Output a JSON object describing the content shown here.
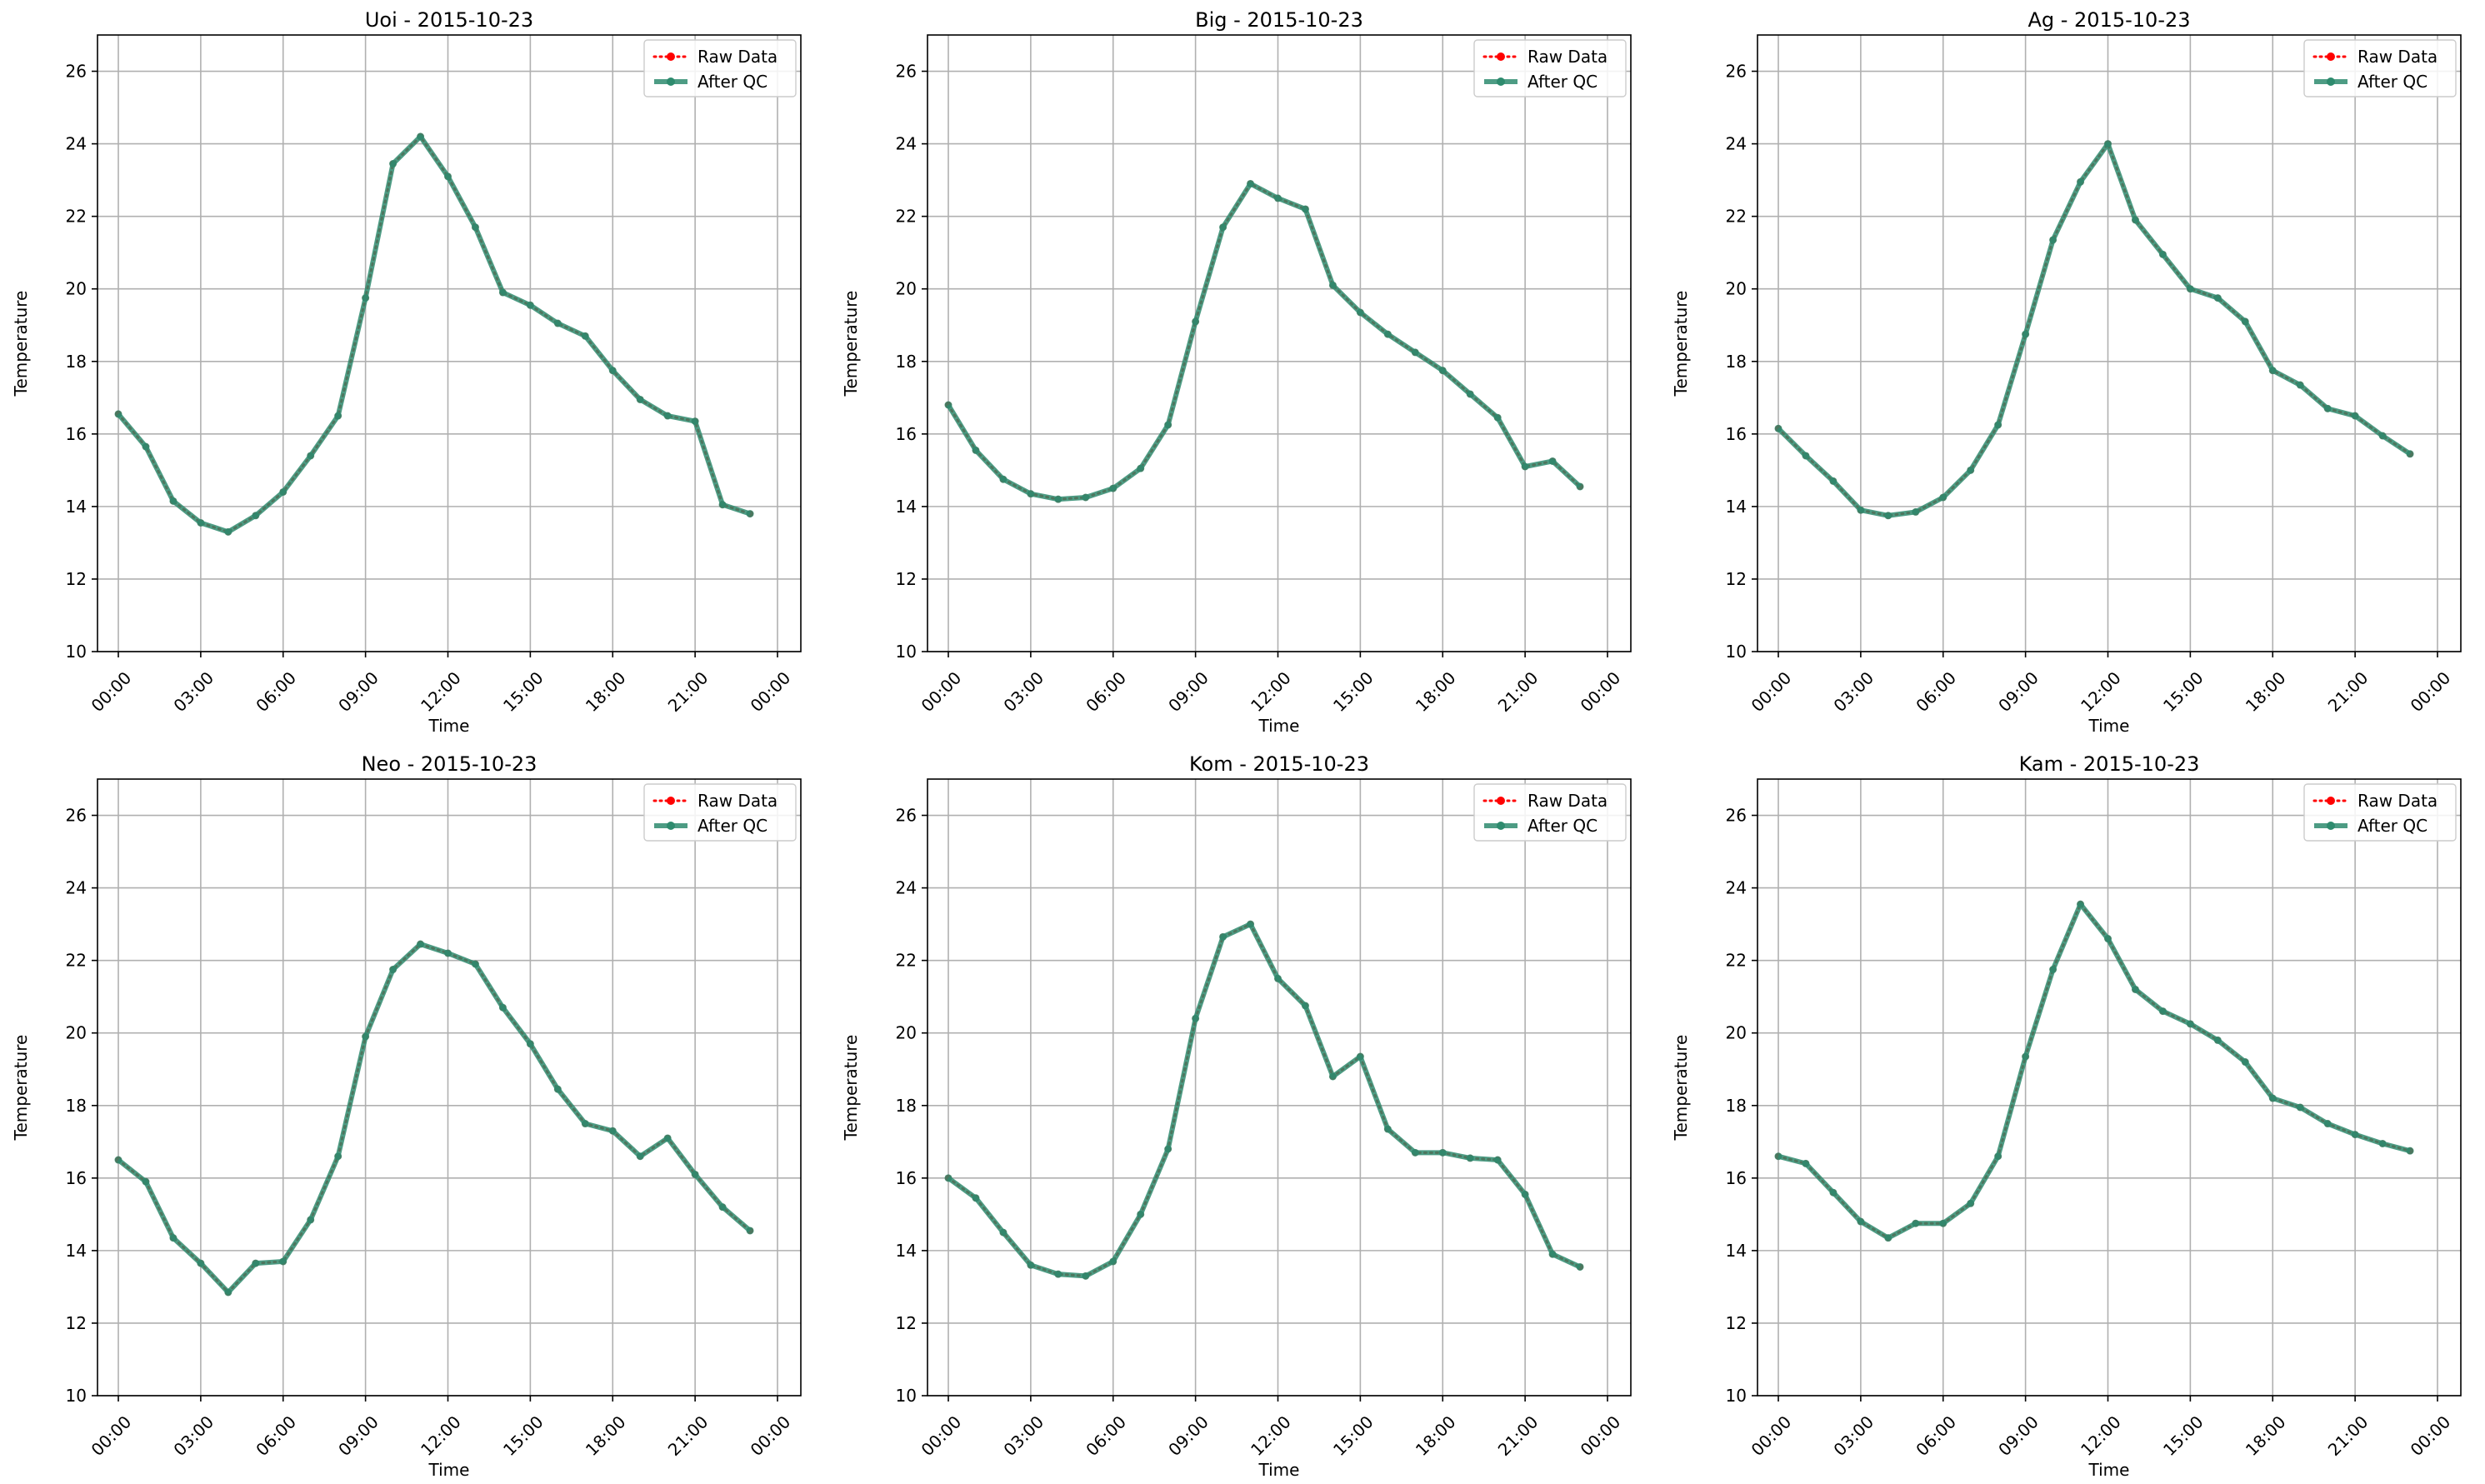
{
  "legend": {
    "raw_label": "Raw Data",
    "qc_label": "After QC",
    "raw_color": "#ff0000",
    "qc_color": "#2e8b6e"
  },
  "chart_data": [
    {
      "type": "line",
      "title": "Uoi - 2015-10-23",
      "xlabel": "Time",
      "ylabel": "Temperature",
      "ylim": [
        10,
        27
      ],
      "yticks": [
        10,
        12,
        14,
        16,
        18,
        20,
        22,
        24,
        26
      ],
      "xticks": [
        "00:00",
        "03:00",
        "06:00",
        "09:00",
        "12:00",
        "15:00",
        "18:00",
        "21:00",
        "00:00"
      ],
      "grid": true,
      "legend_position": "top-right",
      "x": [
        0,
        1,
        2,
        3,
        4,
        5,
        6,
        7,
        8,
        9,
        10,
        11,
        12,
        13,
        14,
        15,
        16,
        17,
        18,
        19,
        20,
        21,
        22,
        23
      ],
      "series": [
        {
          "name": "Raw Data",
          "values": [
            16.55,
            15.65,
            14.15,
            13.55,
            13.3,
            13.75,
            14.4,
            15.4,
            16.5,
            19.75,
            23.45,
            24.2,
            23.1,
            21.7,
            19.9,
            19.55,
            19.05,
            18.7,
            17.75,
            16.95,
            16.5,
            16.35,
            14.05,
            13.8
          ]
        },
        {
          "name": "After QC",
          "values": [
            16.55,
            15.65,
            14.15,
            13.55,
            13.3,
            13.75,
            14.4,
            15.4,
            16.5,
            19.75,
            23.45,
            24.2,
            23.1,
            21.7,
            19.9,
            19.55,
            19.05,
            18.7,
            17.75,
            16.95,
            16.5,
            16.35,
            14.05,
            13.8
          ]
        }
      ]
    },
    {
      "type": "line",
      "title": "Big - 2015-10-23",
      "xlabel": "Time",
      "ylabel": "Temperature",
      "ylim": [
        10,
        27
      ],
      "yticks": [
        10,
        12,
        14,
        16,
        18,
        20,
        22,
        24,
        26
      ],
      "xticks": [
        "00:00",
        "03:00",
        "06:00",
        "09:00",
        "12:00",
        "15:00",
        "18:00",
        "21:00",
        "00:00"
      ],
      "grid": true,
      "legend_position": "top-right",
      "x": [
        0,
        1,
        2,
        3,
        4,
        5,
        6,
        7,
        8,
        9,
        10,
        11,
        12,
        13,
        14,
        15,
        16,
        17,
        18,
        19,
        20,
        21,
        22,
        23
      ],
      "series": [
        {
          "name": "Raw Data",
          "values": [
            16.8,
            15.55,
            14.75,
            14.35,
            14.2,
            14.25,
            14.5,
            15.05,
            16.25,
            19.1,
            21.7,
            22.9,
            22.5,
            22.2,
            20.1,
            19.35,
            18.75,
            18.25,
            17.75,
            17.1,
            16.45,
            15.1,
            15.25,
            14.55
          ]
        },
        {
          "name": "After QC",
          "values": [
            16.8,
            15.55,
            14.75,
            14.35,
            14.2,
            14.25,
            14.5,
            15.05,
            16.25,
            19.1,
            21.7,
            22.9,
            22.5,
            22.2,
            20.1,
            19.35,
            18.75,
            18.25,
            17.75,
            17.1,
            16.45,
            15.1,
            15.25,
            14.55
          ]
        }
      ]
    },
    {
      "type": "line",
      "title": "Ag - 2015-10-23",
      "xlabel": "Time",
      "ylabel": "Temperature",
      "ylim": [
        10,
        27
      ],
      "yticks": [
        10,
        12,
        14,
        16,
        18,
        20,
        22,
        24,
        26
      ],
      "xticks": [
        "00:00",
        "03:00",
        "06:00",
        "09:00",
        "12:00",
        "15:00",
        "18:00",
        "21:00",
        "00:00"
      ],
      "grid": true,
      "legend_position": "top-right",
      "x": [
        0,
        1,
        2,
        3,
        4,
        5,
        6,
        7,
        8,
        9,
        10,
        11,
        12,
        13,
        14,
        15,
        16,
        17,
        18,
        19,
        20,
        21,
        22,
        23
      ],
      "series": [
        {
          "name": "Raw Data",
          "values": [
            16.15,
            15.4,
            14.7,
            13.9,
            13.75,
            13.85,
            14.25,
            15.0,
            16.25,
            18.75,
            21.35,
            22.95,
            24.0,
            21.9,
            20.95,
            20.0,
            19.75,
            19.1,
            17.75,
            17.35,
            16.7,
            16.5,
            15.95,
            15.45
          ]
        },
        {
          "name": "After QC",
          "values": [
            16.15,
            15.4,
            14.7,
            13.9,
            13.75,
            13.85,
            14.25,
            15.0,
            16.25,
            18.75,
            21.35,
            22.95,
            24.0,
            21.9,
            20.95,
            20.0,
            19.75,
            19.1,
            17.75,
            17.35,
            16.7,
            16.5,
            15.95,
            15.45
          ]
        }
      ]
    },
    {
      "type": "line",
      "title": "Neo - 2015-10-23",
      "xlabel": "Time",
      "ylabel": "Temperature",
      "ylim": [
        10,
        27
      ],
      "yticks": [
        10,
        12,
        14,
        16,
        18,
        20,
        22,
        24,
        26
      ],
      "xticks": [
        "00:00",
        "03:00",
        "06:00",
        "09:00",
        "12:00",
        "15:00",
        "18:00",
        "21:00",
        "00:00"
      ],
      "grid": true,
      "legend_position": "top-right",
      "x": [
        0,
        1,
        2,
        3,
        4,
        5,
        6,
        7,
        8,
        9,
        10,
        11,
        12,
        13,
        14,
        15,
        16,
        17,
        18,
        19,
        20,
        21,
        22,
        23
      ],
      "series": [
        {
          "name": "Raw Data",
          "values": [
            16.5,
            15.9,
            14.35,
            13.65,
            12.85,
            13.65,
            13.7,
            14.85,
            16.6,
            19.9,
            21.75,
            22.45,
            22.2,
            21.9,
            20.7,
            19.7,
            18.45,
            17.5,
            17.3,
            16.6,
            17.1,
            16.1,
            15.2,
            14.55
          ]
        },
        {
          "name": "After QC",
          "values": [
            16.5,
            15.9,
            14.35,
            13.65,
            12.85,
            13.65,
            13.7,
            14.85,
            16.6,
            19.9,
            21.75,
            22.45,
            22.2,
            21.9,
            20.7,
            19.7,
            18.45,
            17.5,
            17.3,
            16.6,
            17.1,
            16.1,
            15.2,
            14.55
          ]
        }
      ]
    },
    {
      "type": "line",
      "title": "Kom - 2015-10-23",
      "xlabel": "Time",
      "ylabel": "Temperature",
      "ylim": [
        10,
        27
      ],
      "yticks": [
        10,
        12,
        14,
        16,
        18,
        20,
        22,
        24,
        26
      ],
      "xticks": [
        "00:00",
        "03:00",
        "06:00",
        "09:00",
        "12:00",
        "15:00",
        "18:00",
        "21:00",
        "00:00"
      ],
      "grid": true,
      "legend_position": "top-right",
      "x": [
        0,
        1,
        2,
        3,
        4,
        5,
        6,
        7,
        8,
        9,
        10,
        11,
        12,
        13,
        14,
        15,
        16,
        17,
        18,
        19,
        20,
        21,
        22,
        23
      ],
      "series": [
        {
          "name": "Raw Data",
          "values": [
            16.0,
            15.45,
            14.5,
            13.6,
            13.35,
            13.3,
            13.7,
            15.0,
            16.8,
            20.4,
            22.65,
            23.0,
            21.5,
            20.75,
            18.8,
            19.35,
            17.35,
            16.7,
            16.7,
            16.55,
            16.5,
            15.55,
            13.9,
            13.55
          ]
        },
        {
          "name": "After QC",
          "values": [
            16.0,
            15.45,
            14.5,
            13.6,
            13.35,
            13.3,
            13.7,
            15.0,
            16.8,
            20.4,
            22.65,
            23.0,
            21.5,
            20.75,
            18.8,
            19.35,
            17.35,
            16.7,
            16.7,
            16.55,
            16.5,
            15.55,
            13.9,
            13.55
          ]
        }
      ]
    },
    {
      "type": "line",
      "title": "Kam - 2015-10-23",
      "xlabel": "Time",
      "ylabel": "Temperature",
      "ylim": [
        10,
        27
      ],
      "yticks": [
        10,
        12,
        14,
        16,
        18,
        20,
        22,
        24,
        26
      ],
      "xticks": [
        "00:00",
        "03:00",
        "06:00",
        "09:00",
        "12:00",
        "15:00",
        "18:00",
        "21:00",
        "00:00"
      ],
      "grid": true,
      "legend_position": "top-right",
      "x": [
        0,
        1,
        2,
        3,
        4,
        5,
        6,
        7,
        8,
        9,
        10,
        11,
        12,
        13,
        14,
        15,
        16,
        17,
        18,
        19,
        20,
        21,
        22,
        23
      ],
      "series": [
        {
          "name": "Raw Data",
          "values": [
            16.6,
            16.4,
            15.6,
            14.8,
            14.35,
            14.75,
            14.75,
            15.3,
            16.6,
            19.35,
            21.75,
            23.55,
            22.6,
            21.2,
            20.6,
            20.25,
            19.8,
            19.2,
            18.2,
            17.95,
            17.5,
            17.2,
            16.95,
            16.75
          ]
        },
        {
          "name": "After QC",
          "values": [
            16.6,
            16.4,
            15.6,
            14.8,
            14.35,
            14.75,
            14.75,
            15.3,
            16.6,
            19.35,
            21.75,
            23.55,
            22.6,
            21.2,
            20.6,
            20.25,
            19.8,
            19.2,
            18.2,
            17.95,
            17.5,
            17.2,
            16.95,
            16.75
          ]
        }
      ]
    }
  ]
}
